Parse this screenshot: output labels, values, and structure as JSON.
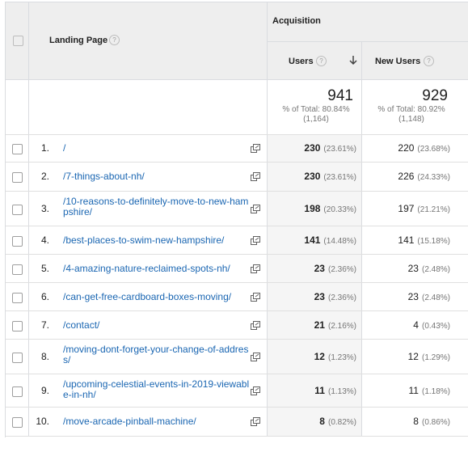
{
  "header": {
    "group_label": "Acquisition",
    "landing_page_label": "Landing Page",
    "users_label": "Users",
    "new_users_label": "New Users"
  },
  "totals": {
    "users": {
      "value": "941",
      "line1": "% of Total: 80.84%",
      "line2": "(1,164)"
    },
    "new_users": {
      "value": "929",
      "line1": "% of Total: 80.92%",
      "line2": "(1,148)"
    }
  },
  "rows": [
    {
      "index": "1.",
      "page": "/",
      "users": "230",
      "users_pct": "(23.61%)",
      "new_users": "220",
      "new_users_pct": "(23.68%)"
    },
    {
      "index": "2.",
      "page": "/7-things-about-nh/",
      "users": "230",
      "users_pct": "(23.61%)",
      "new_users": "226",
      "new_users_pct": "(24.33%)"
    },
    {
      "index": "3.",
      "page": "/10-reasons-to-definitely-move-to-new-hampshire/",
      "users": "198",
      "users_pct": "(20.33%)",
      "new_users": "197",
      "new_users_pct": "(21.21%)"
    },
    {
      "index": "4.",
      "page": "/best-places-to-swim-new-hampshire/",
      "users": "141",
      "users_pct": "(14.48%)",
      "new_users": "141",
      "new_users_pct": "(15.18%)"
    },
    {
      "index": "5.",
      "page": "/4-amazing-nature-reclaimed-spots-nh/",
      "users": "23",
      "users_pct": "(2.36%)",
      "new_users": "23",
      "new_users_pct": "(2.48%)"
    },
    {
      "index": "6.",
      "page": "/can-get-free-cardboard-boxes-moving/",
      "users": "23",
      "users_pct": "(2.36%)",
      "new_users": "23",
      "new_users_pct": "(2.48%)"
    },
    {
      "index": "7.",
      "page": "/contact/",
      "users": "21",
      "users_pct": "(2.16%)",
      "new_users": "4",
      "new_users_pct": "(0.43%)"
    },
    {
      "index": "8.",
      "page": "/moving-dont-forget-your-change-of-address/",
      "users": "12",
      "users_pct": "(1.23%)",
      "new_users": "12",
      "new_users_pct": "(1.29%)"
    },
    {
      "index": "9.",
      "page": "/upcoming-celestial-events-in-2019-viewable-in-nh/",
      "users": "11",
      "users_pct": "(1.13%)",
      "new_users": "11",
      "new_users_pct": "(1.18%)"
    },
    {
      "index": "10.",
      "page": "/move-arcade-pinball-machine/",
      "users": "8",
      "users_pct": "(0.82%)",
      "new_users": "8",
      "new_users_pct": "(0.86%)"
    }
  ],
  "icons": {
    "help": "help-icon",
    "sort": "sort-down-arrow-icon",
    "external": "open-in-new-window-icon"
  },
  "colors": {
    "link": "#1a66b2",
    "header_bg": "#eeeeee",
    "users_column_bg": "#f5f5f5"
  }
}
